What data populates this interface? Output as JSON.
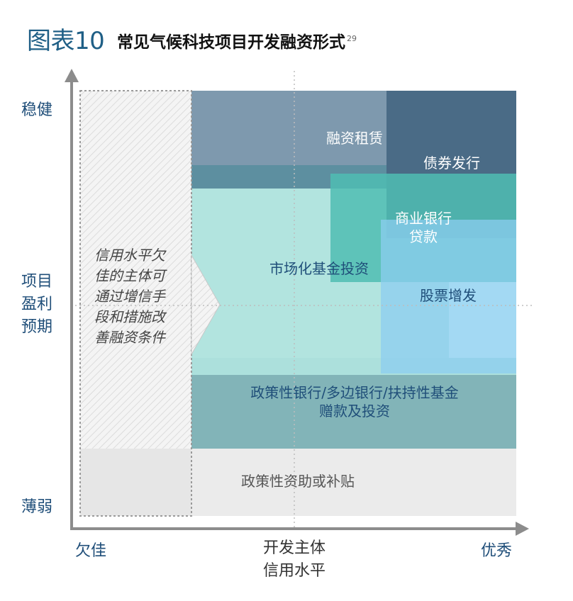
{
  "header": {
    "figure_number": "图表10",
    "title": "常见气候科技项目开发融资形式",
    "footnote_ref": "29"
  },
  "y_axis": {
    "top_label": "稳健",
    "middle_label_lines": [
      "项目",
      "盈利",
      "预期"
    ],
    "bottom_label": "薄弱"
  },
  "x_axis": {
    "left_label": "欠佳",
    "middle_label_lines": [
      "开发主体",
      "信用水平"
    ],
    "right_label": "优秀"
  },
  "note_box": {
    "lines": [
      "信用水平欠",
      "佳的主体可",
      "通过增信手",
      "段和措施改",
      "善融资条件"
    ]
  },
  "blocks": {
    "financing_lease": "融资租赁",
    "bonds": "债券发行",
    "bank_loan_lines": [
      "商业银行",
      "贷款"
    ],
    "market_fund": "市场化基金投资",
    "equity": "股票增发",
    "policy_bank_lines": [
      "政策性银行/多边银行/扶持性基金",
      "赠款及投资"
    ],
    "policy_subsidy": "政策性资助或补贴"
  },
  "colors": {
    "axis": "#8c8c8c",
    "title_blue": "#1f5f86",
    "financing_lease": "#7e99ae",
    "bonds": "#4a6b86",
    "market_fund": "#aee3dd",
    "bank_loan": "#4fbdb3",
    "equity": "#8ccdf0",
    "policy_bank": "#82b4b8",
    "policy_subsidy": "#ebebeb",
    "note_hatch": "#e9e9e9"
  }
}
